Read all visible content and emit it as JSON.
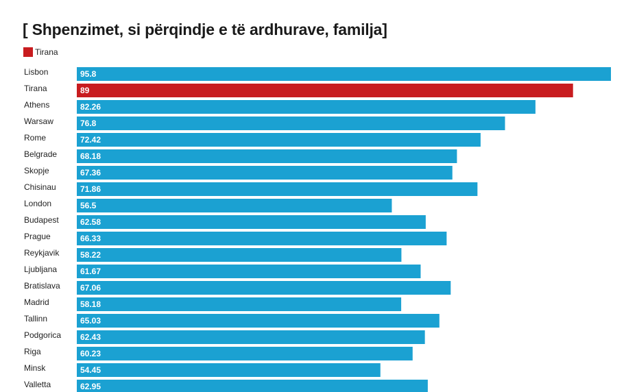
{
  "chart_data": {
    "type": "bar",
    "orientation": "horizontal",
    "title": "[ Shpenzimet, si përqindje e të ardhurave, familja]",
    "xlabel": "",
    "ylabel": "",
    "xlim": [
      0,
      95.8
    ],
    "grid": false,
    "legend": {
      "placement": "top-left",
      "entries": [
        {
          "name": "Tirana",
          "color": "#c81c1f"
        }
      ]
    },
    "colors": {
      "default": "#1ba1d2",
      "highlight": "#c81c1f"
    },
    "highlight_category": "Tirana",
    "categories": [
      "Lisbon",
      "Tirana",
      "Athens",
      "Warsaw",
      "Rome",
      "Belgrade",
      "Skopje",
      "Chisinau",
      "London",
      "Budapest",
      "Prague",
      "Reykjavik",
      "Ljubljana",
      "Bratislava",
      "Madrid",
      "Tallinn",
      "Podgorica",
      "Riga",
      "Minsk",
      "Valletta"
    ],
    "values": [
      95.8,
      89,
      82.26,
      76.8,
      72.42,
      68.18,
      67.36,
      71.86,
      56.5,
      62.58,
      66.33,
      58.22,
      61.67,
      67.06,
      58.18,
      65.03,
      62.43,
      60.23,
      54.45,
      62.95
    ]
  }
}
